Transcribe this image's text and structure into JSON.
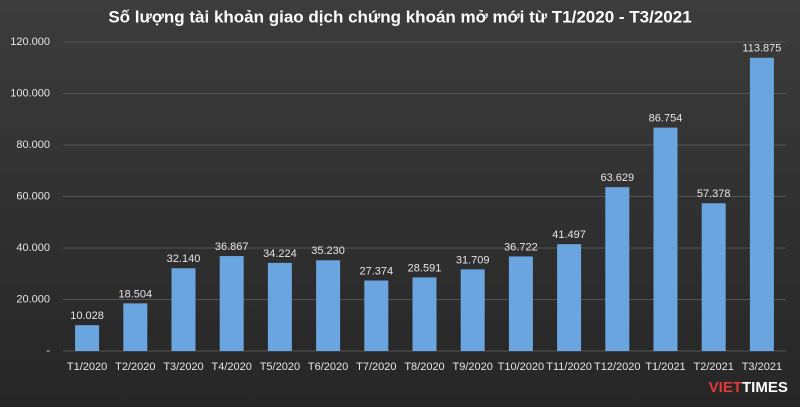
{
  "chart_data": {
    "type": "bar",
    "title": "Số lượng tài khoản giao dịch chứng khoán mở mới từ T1/2020 - T3/2021",
    "categories": [
      "T1/2020",
      "T2/2020",
      "T3/2020",
      "T4/2020",
      "T5/2020",
      "T6/2020",
      "T7/2020",
      "T8/2020",
      "T9/2020",
      "T10/2020",
      "T11/2020",
      "T12/2020",
      "T1/2021",
      "T2/2021",
      "T3/2021"
    ],
    "values": [
      10028,
      18504,
      32140,
      36867,
      34224,
      35230,
      27374,
      28591,
      31709,
      36722,
      41497,
      63629,
      86754,
      57378,
      113875
    ],
    "value_labels": [
      "10.028",
      "18.504",
      "32.140",
      "36.867",
      "34.224",
      "35.230",
      "27.374",
      "28.591",
      "31.709",
      "36.722",
      "41.497",
      "63.629",
      "86.754",
      "57.378",
      "113.875"
    ],
    "color": "#6aa5e0",
    "ylim": [
      0,
      120000
    ],
    "yticks": [
      {
        "value": 0,
        "label": "-"
      },
      {
        "value": 20000,
        "label": "20.000"
      },
      {
        "value": 40000,
        "label": "40.000"
      },
      {
        "value": 60000,
        "label": "60.000"
      },
      {
        "value": 80000,
        "label": "80.000"
      },
      {
        "value": 100000,
        "label": "100.000"
      },
      {
        "value": 120000,
        "label": "120.000"
      }
    ],
    "grid": true
  },
  "logo": {
    "part1": "VIET",
    "part2": "TIMES"
  }
}
